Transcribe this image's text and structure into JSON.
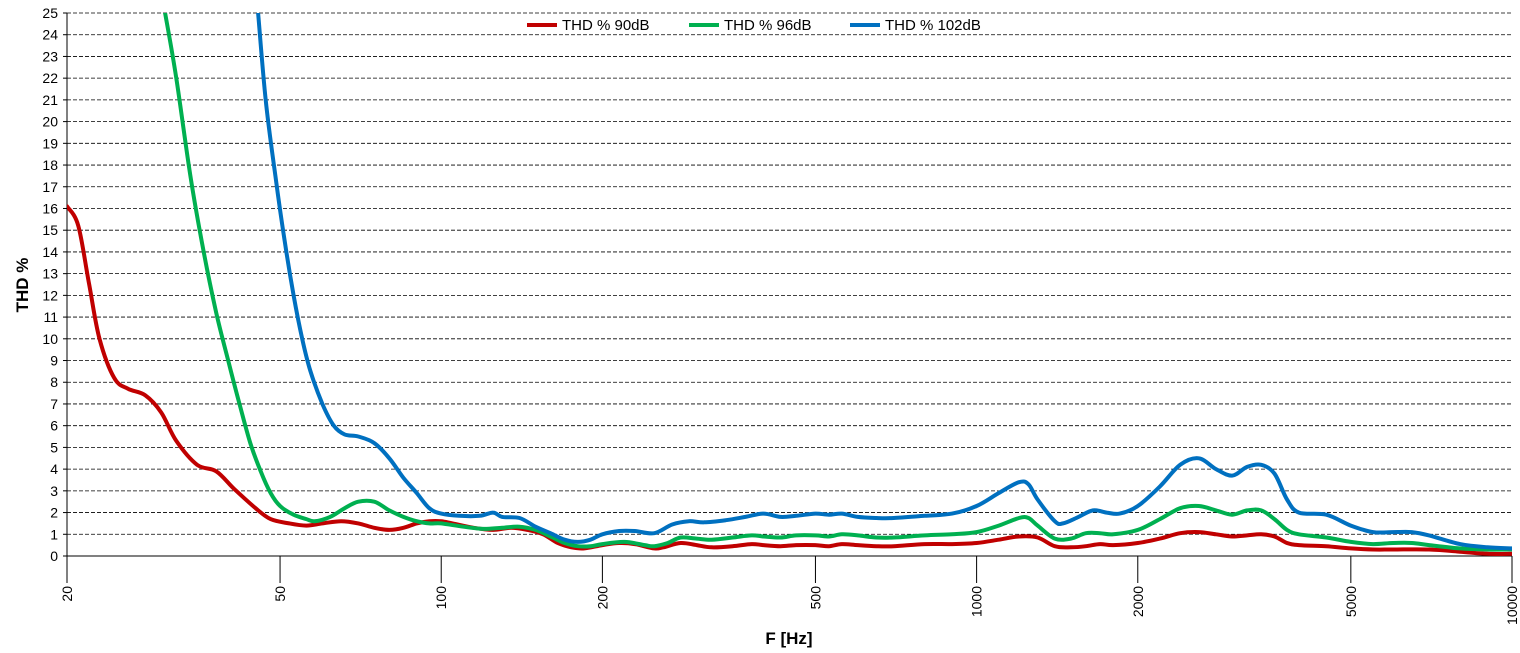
{
  "chart_data": {
    "type": "line",
    "xscale": "log",
    "xlabel": "F [Hz]",
    "ylabel": "THD %",
    "xlim": [
      20,
      10000
    ],
    "ylim": [
      0,
      25
    ],
    "grid": true,
    "legend_position": "top-center",
    "y_ticks": [
      "0",
      "1",
      "2",
      "3",
      "4",
      "5",
      "6",
      "7",
      "8",
      "9",
      "10",
      "11",
      "12",
      "13",
      "14",
      "15",
      "16",
      "17",
      "18",
      "19",
      "20",
      "21",
      "22",
      "23",
      "24",
      "25"
    ],
    "x_ticks": [
      {
        "value": 20,
        "label": "20"
      },
      {
        "value": 50,
        "label": "50"
      },
      {
        "value": 100,
        "label": "100"
      },
      {
        "value": 200,
        "label": "200"
      },
      {
        "value": 500,
        "label": "500"
      },
      {
        "value": 1000,
        "label": "1000"
      },
      {
        "value": 2000,
        "label": "2000"
      },
      {
        "value": 5000,
        "label": "5000"
      },
      {
        "value": 10000,
        "label": "10000"
      }
    ],
    "series": [
      {
        "name": "THD % 90dB",
        "color": "#c00000",
        "points": [
          [
            20,
            16.1
          ],
          [
            21,
            15.2
          ],
          [
            22,
            12.5
          ],
          [
            23,
            10
          ],
          [
            24.5,
            8.2
          ],
          [
            26,
            7.7
          ],
          [
            28,
            7.4
          ],
          [
            30,
            6.6
          ],
          [
            32,
            5.3
          ],
          [
            35,
            4.2
          ],
          [
            38,
            3.9
          ],
          [
            41,
            3.1
          ],
          [
            45,
            2.2
          ],
          [
            48,
            1.7
          ],
          [
            52,
            1.5
          ],
          [
            56,
            1.4
          ],
          [
            60,
            1.5
          ],
          [
            65,
            1.6
          ],
          [
            70,
            1.5
          ],
          [
            75,
            1.3
          ],
          [
            80,
            1.2
          ],
          [
            85,
            1.3
          ],
          [
            90,
            1.5
          ],
          [
            95,
            1.6
          ],
          [
            100,
            1.6
          ],
          [
            105,
            1.5
          ],
          [
            115,
            1.3
          ],
          [
            125,
            1.2
          ],
          [
            135,
            1.3
          ],
          [
            145,
            1.2
          ],
          [
            155,
            1.0
          ],
          [
            165,
            0.6
          ],
          [
            175,
            0.4
          ],
          [
            185,
            0.35
          ],
          [
            200,
            0.5
          ],
          [
            215,
            0.6
          ],
          [
            230,
            0.55
          ],
          [
            250,
            0.35
          ],
          [
            260,
            0.4
          ],
          [
            280,
            0.6
          ],
          [
            300,
            0.5
          ],
          [
            320,
            0.4
          ],
          [
            350,
            0.45
          ],
          [
            380,
            0.55
          ],
          [
            400,
            0.5
          ],
          [
            430,
            0.45
          ],
          [
            460,
            0.5
          ],
          [
            500,
            0.5
          ],
          [
            530,
            0.45
          ],
          [
            560,
            0.55
          ],
          [
            600,
            0.5
          ],
          [
            650,
            0.45
          ],
          [
            700,
            0.45
          ],
          [
            800,
            0.55
          ],
          [
            900,
            0.55
          ],
          [
            1000,
            0.6
          ],
          [
            1100,
            0.75
          ],
          [
            1200,
            0.9
          ],
          [
            1300,
            0.85
          ],
          [
            1400,
            0.45
          ],
          [
            1500,
            0.4
          ],
          [
            1600,
            0.45
          ],
          [
            1700,
            0.55
          ],
          [
            1800,
            0.5
          ],
          [
            2000,
            0.6
          ],
          [
            2200,
            0.8
          ],
          [
            2400,
            1.05
          ],
          [
            2600,
            1.1
          ],
          [
            2800,
            1.0
          ],
          [
            3000,
            0.9
          ],
          [
            3200,
            0.95
          ],
          [
            3400,
            1.0
          ],
          [
            3600,
            0.9
          ],
          [
            3800,
            0.6
          ],
          [
            4000,
            0.5
          ],
          [
            4500,
            0.45
          ],
          [
            5000,
            0.35
          ],
          [
            5500,
            0.3
          ],
          [
            6000,
            0.3
          ],
          [
            7000,
            0.3
          ],
          [
            8000,
            0.2
          ],
          [
            9000,
            0.1
          ],
          [
            10000,
            0.1
          ]
        ]
      },
      {
        "name": "THD % 96dB",
        "color": "#00b050",
        "points": [
          [
            30.5,
            25
          ],
          [
            32,
            22
          ],
          [
            34,
            17.5
          ],
          [
            36,
            14
          ],
          [
            38,
            11.2
          ],
          [
            40,
            9
          ],
          [
            42,
            7
          ],
          [
            44,
            5.2
          ],
          [
            46,
            3.9
          ],
          [
            48,
            2.9
          ],
          [
            50,
            2.3
          ],
          [
            53,
            1.9
          ],
          [
            56,
            1.7
          ],
          [
            58,
            1.6
          ],
          [
            62,
            1.8
          ],
          [
            66,
            2.2
          ],
          [
            70,
            2.5
          ],
          [
            75,
            2.5
          ],
          [
            80,
            2.1
          ],
          [
            85,
            1.8
          ],
          [
            90,
            1.6
          ],
          [
            95,
            1.5
          ],
          [
            100,
            1.5
          ],
          [
            110,
            1.35
          ],
          [
            120,
            1.25
          ],
          [
            130,
            1.3
          ],
          [
            140,
            1.35
          ],
          [
            150,
            1.2
          ],
          [
            160,
            0.9
          ],
          [
            170,
            0.6
          ],
          [
            180,
            0.45
          ],
          [
            190,
            0.45
          ],
          [
            200,
            0.55
          ],
          [
            220,
            0.65
          ],
          [
            240,
            0.5
          ],
          [
            250,
            0.45
          ],
          [
            265,
            0.6
          ],
          [
            280,
            0.85
          ],
          [
            300,
            0.8
          ],
          [
            320,
            0.75
          ],
          [
            350,
            0.85
          ],
          [
            380,
            0.95
          ],
          [
            400,
            0.9
          ],
          [
            430,
            0.85
          ],
          [
            460,
            0.95
          ],
          [
            500,
            0.95
          ],
          [
            530,
            0.9
          ],
          [
            560,
            1.0
          ],
          [
            600,
            0.95
          ],
          [
            650,
            0.85
          ],
          [
            700,
            0.85
          ],
          [
            800,
            0.95
          ],
          [
            900,
            1.0
          ],
          [
            1000,
            1.1
          ],
          [
            1100,
            1.4
          ],
          [
            1200,
            1.75
          ],
          [
            1250,
            1.75
          ],
          [
            1300,
            1.4
          ],
          [
            1400,
            0.8
          ],
          [
            1500,
            0.8
          ],
          [
            1600,
            1.05
          ],
          [
            1700,
            1.05
          ],
          [
            1800,
            1.0
          ],
          [
            2000,
            1.2
          ],
          [
            2200,
            1.7
          ],
          [
            2400,
            2.2
          ],
          [
            2600,
            2.3
          ],
          [
            2800,
            2.1
          ],
          [
            3000,
            1.9
          ],
          [
            3200,
            2.1
          ],
          [
            3400,
            2.1
          ],
          [
            3600,
            1.7
          ],
          [
            3800,
            1.2
          ],
          [
            4000,
            1.0
          ],
          [
            4500,
            0.85
          ],
          [
            5000,
            0.65
          ],
          [
            5500,
            0.55
          ],
          [
            6000,
            0.6
          ],
          [
            6500,
            0.6
          ],
          [
            7000,
            0.5
          ],
          [
            8000,
            0.35
          ],
          [
            9000,
            0.3
          ],
          [
            10000,
            0.3
          ]
        ]
      },
      {
        "name": "THD % 102dB",
        "color": "#0070c0",
        "points": [
          [
            45.5,
            25
          ],
          [
            47,
            21
          ],
          [
            49,
            17.5
          ],
          [
            51,
            14.5
          ],
          [
            53,
            12
          ],
          [
            55,
            10
          ],
          [
            57,
            8.5
          ],
          [
            60,
            7
          ],
          [
            63,
            6
          ],
          [
            66,
            5.6
          ],
          [
            70,
            5.5
          ],
          [
            75,
            5.2
          ],
          [
            80,
            4.5
          ],
          [
            85,
            3.6
          ],
          [
            90,
            2.9
          ],
          [
            95,
            2.2
          ],
          [
            100,
            1.95
          ],
          [
            108,
            1.85
          ],
          [
            118,
            1.85
          ],
          [
            125,
            2.0
          ],
          [
            130,
            1.8
          ],
          [
            140,
            1.75
          ],
          [
            150,
            1.35
          ],
          [
            160,
            1.05
          ],
          [
            170,
            0.75
          ],
          [
            180,
            0.65
          ],
          [
            190,
            0.75
          ],
          [
            200,
            1.0
          ],
          [
            215,
            1.15
          ],
          [
            230,
            1.15
          ],
          [
            250,
            1.05
          ],
          [
            270,
            1.45
          ],
          [
            290,
            1.6
          ],
          [
            310,
            1.55
          ],
          [
            340,
            1.65
          ],
          [
            370,
            1.8
          ],
          [
            400,
            1.95
          ],
          [
            430,
            1.8
          ],
          [
            460,
            1.85
          ],
          [
            500,
            1.95
          ],
          [
            530,
            1.9
          ],
          [
            560,
            1.95
          ],
          [
            600,
            1.8
          ],
          [
            650,
            1.75
          ],
          [
            700,
            1.75
          ],
          [
            800,
            1.85
          ],
          [
            900,
            1.95
          ],
          [
            1000,
            2.3
          ],
          [
            1100,
            2.9
          ],
          [
            1200,
            3.4
          ],
          [
            1250,
            3.3
          ],
          [
            1300,
            2.6
          ],
          [
            1400,
            1.6
          ],
          [
            1450,
            1.5
          ],
          [
            1550,
            1.8
          ],
          [
            1650,
            2.1
          ],
          [
            1750,
            2.0
          ],
          [
            1850,
            1.95
          ],
          [
            2000,
            2.3
          ],
          [
            2200,
            3.2
          ],
          [
            2400,
            4.2
          ],
          [
            2600,
            4.5
          ],
          [
            2800,
            4.0
          ],
          [
            3000,
            3.7
          ],
          [
            3200,
            4.1
          ],
          [
            3400,
            4.2
          ],
          [
            3600,
            3.8
          ],
          [
            3800,
            2.6
          ],
          [
            4000,
            2.0
          ],
          [
            4500,
            1.9
          ],
          [
            5000,
            1.4
          ],
          [
            5500,
            1.1
          ],
          [
            6000,
            1.1
          ],
          [
            6500,
            1.1
          ],
          [
            7000,
            0.95
          ],
          [
            8000,
            0.55
          ],
          [
            9000,
            0.4
          ],
          [
            10000,
            0.35
          ]
        ]
      }
    ]
  }
}
